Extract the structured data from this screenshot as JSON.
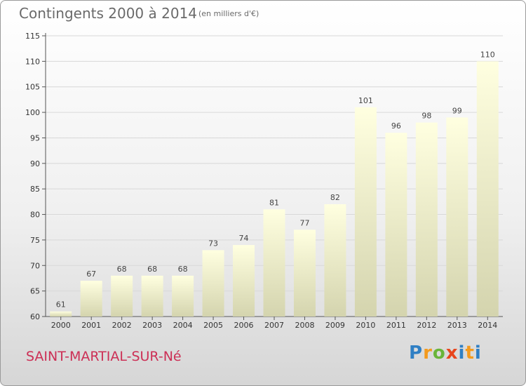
{
  "header": {
    "title": "Contingents 2000 à 2014",
    "subtitle": "(en milliers d'€)"
  },
  "footer": {
    "place": "SAINT-MARTIAL-SUR-Né",
    "logo_text": "Proxiti"
  },
  "colors": {
    "bar_top": "#ffffe0",
    "bar_bottom": "#d4d4ae",
    "title_gray": "#6a6a6a",
    "place_red": "#cc2f55",
    "grid": "#d8d8d8"
  },
  "chart_data": {
    "type": "bar",
    "title": "Contingents 2000 à 2014",
    "subtitle": "(en milliers d'€)",
    "categories": [
      "2000",
      "2001",
      "2002",
      "2003",
      "2004",
      "2005",
      "2006",
      "2007",
      "2008",
      "2009",
      "2010",
      "2011",
      "2012",
      "2013",
      "2014"
    ],
    "values": [
      61,
      67,
      68,
      68,
      68,
      73,
      74,
      81,
      77,
      82,
      101,
      96,
      98,
      99,
      110
    ],
    "ylim": [
      60,
      115
    ],
    "yticks": [
      60,
      65,
      70,
      75,
      80,
      85,
      90,
      95,
      100,
      105,
      110,
      115
    ],
    "xlabel": "",
    "ylabel": "",
    "grid": true,
    "data_labels": true
  }
}
